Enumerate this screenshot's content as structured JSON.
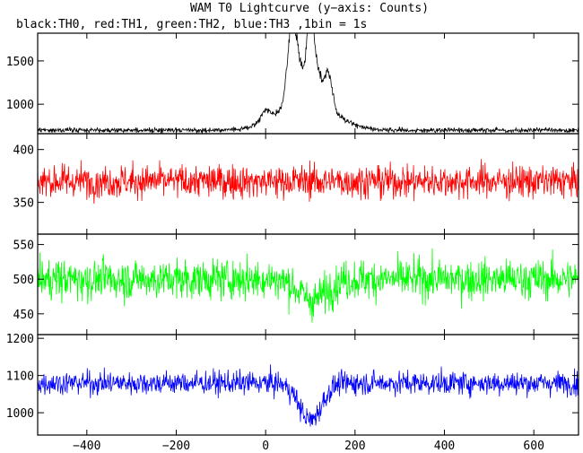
{
  "title": "WAM T0 Lightcurve (y−axis: Counts)",
  "subtitle": "black:TH0, red:TH1, green:TH2, blue:TH3 ,1bin = 1s",
  "chart_data": [
    {
      "type": "line",
      "series": [
        {
          "name": "TH0",
          "color": "#000000"
        }
      ],
      "ylim": [
        660,
        1820
      ],
      "yticks": [
        1000,
        1500
      ],
      "ytick_labels": [
        "1000",
        "1500"
      ],
      "baseline": 700,
      "noise": 20,
      "peaks": [
        {
          "x": 0,
          "height": 120,
          "width": 10
        },
        {
          "x": 57,
          "height": 850,
          "width": 9
        },
        {
          "x": 72,
          "height": 450,
          "width": 8
        },
        {
          "x": 100,
          "height": 1000,
          "width": 9
        },
        {
          "x": 118,
          "height": 250,
          "width": 8
        },
        {
          "x": 140,
          "height": 420,
          "width": 9
        },
        {
          "x": 90,
          "height": 350,
          "width": 60
        }
      ],
      "xlim": [
        -510,
        700
      ]
    },
    {
      "type": "line",
      "series": [
        {
          "name": "TH1",
          "color": "#ff0000"
        }
      ],
      "ylim": [
        320,
        415
      ],
      "yticks": [
        350,
        400
      ],
      "ytick_labels": [
        "350",
        "400"
      ],
      "baseline": 370,
      "noise": 11,
      "dip": {
        "x": 90,
        "depth": 0,
        "width": 60
      },
      "xlim": [
        -510,
        700
      ]
    },
    {
      "type": "line",
      "series": [
        {
          "name": "TH2",
          "color": "#00ff00"
        }
      ],
      "ylim": [
        420,
        565
      ],
      "yticks": [
        450,
        500,
        550
      ],
      "ytick_labels": [
        "450",
        "500",
        "550"
      ],
      "baseline": 500,
      "noise": 20,
      "dip": {
        "x": 105,
        "depth": 30,
        "width": 30
      },
      "xlim": [
        -510,
        700
      ]
    },
    {
      "type": "line",
      "series": [
        {
          "name": "TH3",
          "color": "#0000ff"
        }
      ],
      "ylim": [
        940,
        1210
      ],
      "yticks": [
        1000,
        1100,
        1200
      ],
      "ytick_labels": [
        "1000",
        "1100",
        "1200"
      ],
      "baseline": 1080,
      "noise": 22,
      "dip": {
        "x": 100,
        "depth": 100,
        "width": 25
      },
      "xlim": [
        -510,
        700
      ],
      "xticks": [
        -400,
        -200,
        0,
        200,
        400,
        600
      ],
      "xtick_labels": [
        "−400",
        "−200",
        "0",
        "200",
        "400",
        "600"
      ]
    }
  ]
}
